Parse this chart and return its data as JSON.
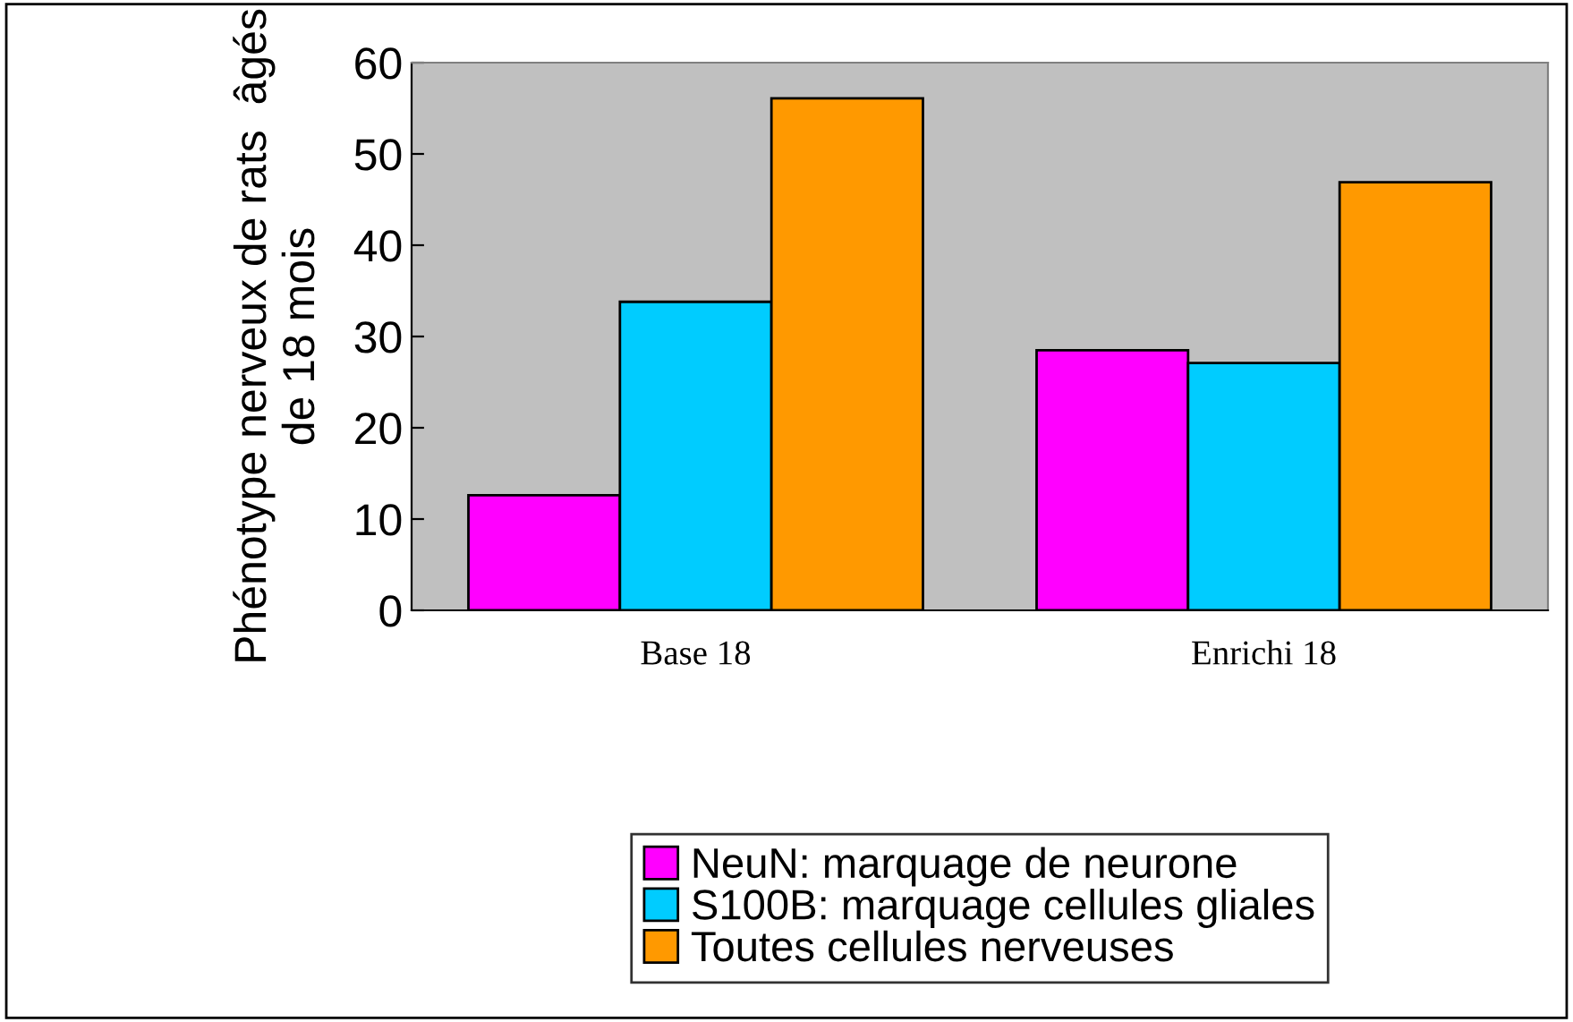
{
  "chart_data": {
    "type": "bar",
    "ylabel": "Phénotype nerveux de rats  âgés\nde 18 mois",
    "categories": [
      "Base 18",
      "Enrichi 18"
    ],
    "series": [
      {
        "name": "NeuN: marquage de neurone",
        "color": "#ff00ff",
        "values": [
          12.6,
          28.5
        ]
      },
      {
        "name": "S100B: marquage cellules gliales",
        "color": "#00ccff",
        "values": [
          33.8,
          27.1
        ]
      },
      {
        "name": "Toutes cellules nerveuses",
        "color": "#ff9900",
        "values": [
          56.1,
          46.9
        ]
      }
    ],
    "ylim": [
      0,
      60
    ],
    "yticks": [
      0,
      10,
      20,
      30,
      40,
      50,
      60
    ],
    "grid": false,
    "legend": "bottom"
  }
}
